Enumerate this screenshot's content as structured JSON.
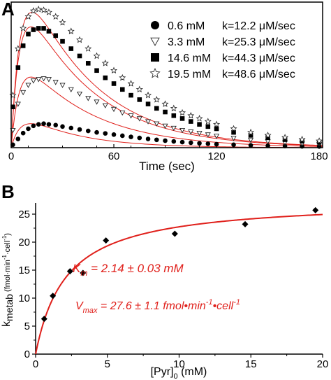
{
  "colors": {
    "fit": "#e0201b",
    "axis": "#000000",
    "marker_stroke": "#222222",
    "text": "#000000",
    "annotation": "#e0201b"
  },
  "chart_data": [
    {
      "panel_label": "A",
      "type": "scatter",
      "xlabel": "Time (sec)",
      "ylabel": "",
      "xlim": [
        0,
        182
      ],
      "ylim": [
        0,
        1.0
      ],
      "y_tick_labels_shown": false,
      "xticks": [
        0,
        60,
        120,
        180
      ],
      "xtick_labels": [
        "0",
        "60",
        "120",
        "180"
      ],
      "legend_position": "top-right",
      "series": [
        {
          "conc_label": "0.6 mM",
          "k_label": "k=12.2 μM/sec",
          "marker": "filled-circle",
          "peak": 0.165,
          "tau_rise": 6.5,
          "tau_decay": 32,
          "points": [
            [
              1,
              0.02
            ],
            [
              4,
              0.06
            ],
            [
              7,
              0.1
            ],
            [
              10,
              0.13
            ],
            [
              13,
              0.15
            ],
            [
              16,
              0.16
            ],
            [
              19,
              0.165
            ],
            [
              22,
              0.16
            ],
            [
              26,
              0.155
            ],
            [
              30,
              0.145
            ],
            [
              35,
              0.135
            ],
            [
              40,
              0.125
            ],
            [
              45,
              0.115
            ],
            [
              50,
              0.105
            ],
            [
              55,
              0.098
            ],
            [
              60,
              0.09
            ],
            [
              65,
              0.082
            ],
            [
              70,
              0.074
            ],
            [
              75,
              0.067
            ],
            [
              80,
              0.06
            ],
            [
              85,
              0.054
            ],
            [
              90,
              0.048
            ],
            [
              95,
              0.043
            ],
            [
              100,
              0.038
            ],
            [
              105,
              0.034
            ],
            [
              110,
              0.03
            ],
            [
              115,
              0.027
            ],
            [
              120,
              0.024
            ],
            [
              130,
              0.02
            ],
            [
              140,
              0.016
            ],
            [
              150,
              0.013
            ],
            [
              160,
              0.011
            ],
            [
              170,
              0.009
            ],
            [
              180,
              0.008
            ]
          ]
        },
        {
          "conc_label": "3.3 mM",
          "k_label": "k=25.3 μM/sec",
          "marker": "open-triangle-down",
          "peak": 0.485,
          "tau_rise": 5.5,
          "tau_decay": 40,
          "points": [
            [
              1,
              0.12
            ],
            [
              4,
              0.3
            ],
            [
              7,
              0.38
            ],
            [
              10,
              0.43
            ],
            [
              13,
              0.46
            ],
            [
              16,
              0.47
            ],
            [
              19,
              0.475
            ],
            [
              22,
              0.47
            ],
            [
              26,
              0.45
            ],
            [
              30,
              0.43
            ],
            [
              35,
              0.4
            ],
            [
              40,
              0.37
            ],
            [
              45,
              0.34
            ],
            [
              50,
              0.315
            ],
            [
              55,
              0.29
            ],
            [
              60,
              0.265
            ],
            [
              65,
              0.24
            ],
            [
              70,
              0.22
            ],
            [
              75,
              0.2
            ],
            [
              80,
              0.18
            ],
            [
              85,
              0.165
            ],
            [
              90,
              0.15
            ],
            [
              95,
              0.135
            ],
            [
              100,
              0.12
            ],
            [
              105,
              0.11
            ],
            [
              110,
              0.1
            ],
            [
              115,
              0.09
            ],
            [
              120,
              0.08
            ],
            [
              130,
              0.065
            ],
            [
              140,
              0.053
            ],
            [
              150,
              0.043
            ],
            [
              160,
              0.035
            ],
            [
              170,
              0.028
            ],
            [
              180,
              0.023
            ]
          ]
        },
        {
          "conc_label": "14.6 mM",
          "k_label": "k=44.3 μM/sec",
          "marker": "filled-square",
          "peak": 0.83,
          "tau_rise": 5.5,
          "tau_decay": 40,
          "points": [
            [
              1,
              0.28
            ],
            [
              4,
              0.55
            ],
            [
              7,
              0.7
            ],
            [
              10,
              0.78
            ],
            [
              13,
              0.81
            ],
            [
              16,
              0.82
            ],
            [
              19,
              0.82
            ],
            [
              22,
              0.8
            ],
            [
              26,
              0.77
            ],
            [
              30,
              0.73
            ],
            [
              35,
              0.68
            ],
            [
              40,
              0.63
            ],
            [
              45,
              0.58
            ],
            [
              50,
              0.53
            ],
            [
              55,
              0.48
            ],
            [
              60,
              0.44
            ],
            [
              65,
              0.4
            ],
            [
              70,
              0.36
            ],
            [
              75,
              0.33
            ],
            [
              80,
              0.3
            ],
            [
              85,
              0.27
            ],
            [
              90,
              0.245
            ],
            [
              95,
              0.22
            ],
            [
              100,
              0.2
            ],
            [
              105,
              0.18
            ],
            [
              110,
              0.16
            ],
            [
              115,
              0.145
            ],
            [
              120,
              0.13
            ],
            [
              130,
              0.105
            ],
            [
              140,
              0.085
            ],
            [
              150,
              0.068
            ],
            [
              160,
              0.055
            ],
            [
              170,
              0.045
            ],
            [
              180,
              0.037
            ]
          ]
        },
        {
          "conc_label": "19.5 mM",
          "k_label": "k=48.6 μM/sec",
          "marker": "open-star",
          "peak": 0.93,
          "tau_rise": 6.0,
          "tau_decay": 40,
          "points": [
            [
              1,
              0.36
            ],
            [
              4,
              0.68
            ],
            [
              7,
              0.82
            ],
            [
              10,
              0.9
            ],
            [
              13,
              0.94
            ],
            [
              16,
              0.95
            ],
            [
              19,
              0.945
            ],
            [
              22,
              0.93
            ],
            [
              26,
              0.9
            ],
            [
              30,
              0.86
            ],
            [
              35,
              0.8
            ],
            [
              40,
              0.74
            ],
            [
              45,
              0.68
            ],
            [
              50,
              0.63
            ],
            [
              55,
              0.58
            ],
            [
              60,
              0.53
            ],
            [
              65,
              0.48
            ],
            [
              70,
              0.44
            ],
            [
              75,
              0.4
            ],
            [
              80,
              0.36
            ],
            [
              85,
              0.33
            ],
            [
              90,
              0.3
            ],
            [
              95,
              0.27
            ],
            [
              100,
              0.24
            ],
            [
              105,
              0.22
            ],
            [
              110,
              0.2
            ],
            [
              115,
              0.18
            ],
            [
              120,
              0.16
            ],
            [
              130,
              0.13
            ],
            [
              140,
              0.105
            ],
            [
              150,
              0.085
            ],
            [
              160,
              0.07
            ],
            [
              170,
              0.057
            ],
            [
              180,
              0.046
            ]
          ]
        }
      ]
    },
    {
      "panel_label": "B",
      "type": "scatter",
      "xlabel": "[Pyr]",
      "xlabel_sub": "0",
      "xlabel_unit": " (mM)",
      "ylabel": "k",
      "ylabel_sub": "metab",
      "ylabel_unit": " (fmol·min",
      "ylabel_unit_sup1": "-1",
      "ylabel_unit_mid": "·cell",
      "ylabel_unit_sup2": "-1",
      "ylabel_unit_end": ")",
      "xlim": [
        0,
        20
      ],
      "ylim": [
        0,
        27
      ],
      "xticks": [
        0,
        5,
        10,
        15,
        20
      ],
      "xtick_labels": [
        "0",
        "5",
        "10",
        "15",
        "20"
      ],
      "yticks": [
        0,
        5,
        10,
        15,
        20,
        25
      ],
      "ytick_labels": [
        "0",
        "5",
        "10",
        "15",
        "20",
        "25"
      ],
      "points": [
        [
          0.6,
          6.3
        ],
        [
          1.2,
          10.4
        ],
        [
          2.4,
          14.8
        ],
        [
          3.3,
          14.5
        ],
        [
          4.9,
          20.3
        ],
        [
          9.7,
          21.5
        ],
        [
          14.6,
          23.2
        ],
        [
          19.5,
          25.7
        ]
      ],
      "fit": {
        "model": "michaelis-menten",
        "Vmax": 27.6,
        "Km": 2.14
      },
      "annotations": {
        "km": {
          "symbol": "K",
          "sub": "m",
          "text": " = 2.14 ± 0.03 mM"
        },
        "vmax": {
          "symbol": "V",
          "sub": "max",
          "text": " = 27.6 ± 1.1 fmol•min",
          "sup1": "-1",
          "mid": "•cell",
          "sup2": "-1"
        }
      }
    }
  ]
}
